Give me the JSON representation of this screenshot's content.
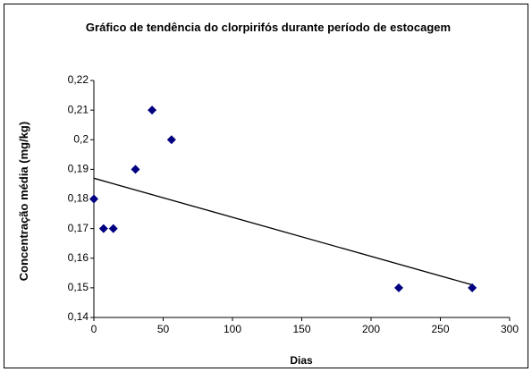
{
  "chart_data": {
    "type": "scatter",
    "title": "Gráfico de tendência do clorpirifós durante período de estocagem",
    "x_label": "Dias",
    "y_label": "Concentração média (mg/kg)",
    "series": [
      {
        "name": "Concentração média",
        "color": "#000080",
        "x": [
          0,
          7,
          14,
          30,
          42,
          56,
          220,
          273
        ],
        "values": [
          0.18,
          0.17,
          0.17,
          0.19,
          0.21,
          0.2,
          0.15,
          0.15
        ]
      }
    ],
    "trendline": {
      "color": "#000000",
      "x": [
        0,
        273
      ],
      "y": [
        0.187,
        0.151
      ]
    },
    "xlim": [
      0,
      300
    ],
    "xticks": [
      0,
      50,
      100,
      150,
      200,
      250,
      300
    ],
    "ylim": [
      0.14,
      0.22
    ],
    "yticks": [
      {
        "value": 0.14,
        "label": "0,14"
      },
      {
        "value": 0.15,
        "label": "0,15"
      },
      {
        "value": 0.16,
        "label": "0,16"
      },
      {
        "value": 0.17,
        "label": "0,17"
      },
      {
        "value": 0.18,
        "label": "0,18"
      },
      {
        "value": 0.19,
        "label": "0,19"
      },
      {
        "value": 0.2,
        "label": "0,2"
      },
      {
        "value": 0.21,
        "label": "0,21"
      },
      {
        "value": 0.22,
        "label": "0,22"
      }
    ],
    "grid": false
  }
}
